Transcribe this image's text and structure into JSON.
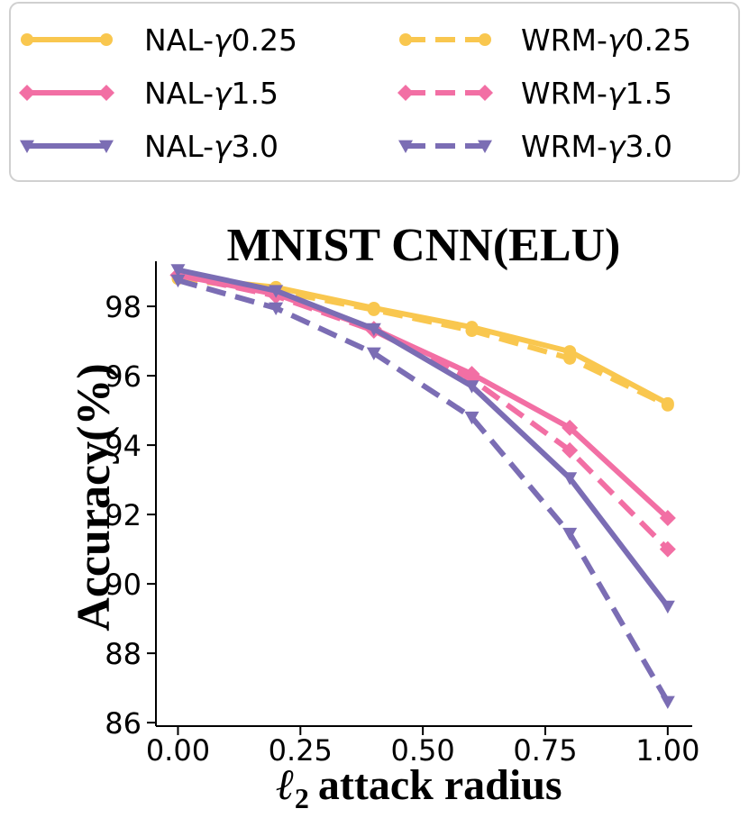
{
  "chart_data": {
    "type": "line",
    "title": "MNIST CNN(ELU)",
    "xlabel_symbol": "ℓ",
    "xlabel_subscript": "2",
    "xlabel_text": "attack radius",
    "ylabel": "Accuracy(%)",
    "x": [
      0.0,
      0.2,
      0.4,
      0.6,
      0.8,
      1.0
    ],
    "xticks": [
      "0.00",
      "0.25",
      "0.50",
      "0.75",
      "1.00"
    ],
    "xtick_values": [
      0.0,
      0.25,
      0.5,
      0.75,
      1.0
    ],
    "yticks": [
      "86",
      "88",
      "90",
      "92",
      "94",
      "96",
      "98"
    ],
    "ytick_values": [
      86,
      88,
      90,
      92,
      94,
      96,
      98
    ],
    "xlim": [
      -0.045,
      1.05
    ],
    "ylim": [
      85.9,
      99.3
    ],
    "legend_position": "top, two columns",
    "series": [
      {
        "name": "NAL-γ0.25",
        "color": "#F9C74F",
        "dash": "solid",
        "marker": "circle",
        "values": [
          98.85,
          98.55,
          97.95,
          97.4,
          96.7,
          95.2
        ]
      },
      {
        "name": "WRM-γ0.25",
        "color": "#F9C74F",
        "dash": "dashed",
        "marker": "circle",
        "values": [
          98.8,
          98.45,
          97.9,
          97.3,
          96.5,
          95.15
        ]
      },
      {
        "name": "NAL-γ1.5",
        "color": "#F26FA4",
        "dash": "solid",
        "marker": "diamond",
        "values": [
          98.9,
          98.35,
          97.35,
          96.05,
          94.5,
          91.9
        ]
      },
      {
        "name": "WRM-γ1.5",
        "color": "#F26FA4",
        "dash": "dashed",
        "marker": "diamond",
        "values": [
          98.9,
          98.3,
          97.3,
          95.9,
          93.85,
          91.0
        ]
      },
      {
        "name": "NAL-γ3.0",
        "color": "#7B6DB4",
        "dash": "solid",
        "marker": "triangle",
        "values": [
          99.05,
          98.45,
          97.35,
          95.7,
          93.05,
          89.35
        ]
      },
      {
        "name": "WRM-γ3.0",
        "color": "#7B6DB4",
        "dash": "dashed",
        "marker": "triangle",
        "values": [
          98.75,
          97.95,
          96.65,
          94.8,
          91.45,
          86.6
        ]
      }
    ]
  },
  "legend": {
    "items": [
      {
        "prefix": "NAL-",
        "gamma": "γ",
        "value": "0.25"
      },
      {
        "prefix": "WRM-",
        "gamma": "γ",
        "value": "0.25"
      },
      {
        "prefix": "NAL-",
        "gamma": "γ",
        "value": "1.5"
      },
      {
        "prefix": "WRM-",
        "gamma": "γ",
        "value": "1.5"
      },
      {
        "prefix": "NAL-",
        "gamma": "γ",
        "value": "3.0"
      },
      {
        "prefix": "WRM-",
        "gamma": "γ",
        "value": "3.0"
      }
    ]
  }
}
